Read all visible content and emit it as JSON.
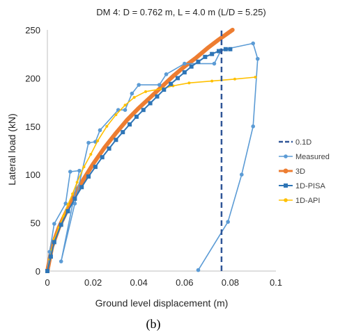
{
  "chart_data": {
    "type": "line",
    "title": "DM 4: D = 0.762 m, L = 4.0 m (L/D = 5.25)",
    "xlabel": "Ground level displacement (m)",
    "ylabel": "Lateral load (kN)",
    "xlim": [
      0,
      0.1
    ],
    "ylim": [
      0,
      250
    ],
    "xticks": [
      "0",
      "0.02",
      "0.04",
      "0.06",
      "0.08",
      "0.1"
    ],
    "yticks": [
      "0",
      "50",
      "100",
      "150",
      "200",
      "250"
    ],
    "grid": false,
    "legend": "right",
    "caption": "(b)",
    "series": [
      {
        "name": "0.1D",
        "style": "dashed",
        "color": "#2f5597",
        "points": [
          [
            0.0762,
            0
          ],
          [
            0.0762,
            250
          ]
        ]
      },
      {
        "name": "Measured",
        "style": "line-dot",
        "color": "#5b9bd5",
        "points": [
          [
            0,
            0
          ],
          [
            0.001,
            20
          ],
          [
            0.003,
            49
          ],
          [
            0.008,
            70
          ],
          [
            0.01,
            103
          ],
          [
            0.014,
            104
          ],
          [
            0.006,
            10
          ],
          [
            0.012,
            70
          ],
          [
            0.018,
            133
          ],
          [
            0.021,
            134
          ],
          [
            0.023,
            146
          ],
          [
            0.031,
            167
          ],
          [
            0.034,
            167
          ],
          [
            0.037,
            184
          ],
          [
            0.04,
            193
          ],
          [
            0.049,
            193
          ],
          [
            0.052,
            204
          ],
          [
            0.06,
            215
          ],
          [
            0.073,
            215
          ],
          [
            0.076,
            229
          ],
          [
            0.09,
            236
          ],
          [
            0.092,
            220
          ],
          [
            0.09,
            150
          ],
          [
            0.085,
            100
          ],
          [
            0.079,
            51
          ],
          [
            0.066,
            1
          ]
        ]
      },
      {
        "name": "3D",
        "style": "thick",
        "color": "#ed7d31",
        "points": [
          [
            0,
            0
          ],
          [
            0.002,
            25
          ],
          [
            0.005,
            45
          ],
          [
            0.01,
            70
          ],
          [
            0.015,
            92
          ],
          [
            0.02,
            111
          ],
          [
            0.025,
            128
          ],
          [
            0.03,
            143
          ],
          [
            0.035,
            157
          ],
          [
            0.04,
            169
          ],
          [
            0.045,
            180
          ],
          [
            0.05,
            191
          ],
          [
            0.055,
            202
          ],
          [
            0.06,
            212
          ],
          [
            0.065,
            221
          ],
          [
            0.07,
            231
          ],
          [
            0.075,
            240
          ],
          [
            0.081,
            250
          ]
        ]
      },
      {
        "name": "1D-PISA",
        "style": "line-square",
        "color": "#2e75b6",
        "points": [
          [
            0,
            0
          ],
          [
            0.0015,
            15
          ],
          [
            0.003,
            30
          ],
          [
            0.006,
            48
          ],
          [
            0.009,
            62
          ],
          [
            0.012,
            75
          ],
          [
            0.015,
            87
          ],
          [
            0.018,
            98
          ],
          [
            0.021,
            108
          ],
          [
            0.024,
            118
          ],
          [
            0.027,
            127
          ],
          [
            0.03,
            136
          ],
          [
            0.033,
            144
          ],
          [
            0.036,
            152
          ],
          [
            0.039,
            160
          ],
          [
            0.042,
            167
          ],
          [
            0.045,
            174
          ],
          [
            0.048,
            181
          ],
          [
            0.051,
            188
          ],
          [
            0.054,
            194
          ],
          [
            0.057,
            200
          ],
          [
            0.06,
            206
          ],
          [
            0.063,
            212
          ],
          [
            0.066,
            217
          ],
          [
            0.069,
            222
          ],
          [
            0.072,
            225
          ],
          [
            0.075,
            228
          ],
          [
            0.078,
            230
          ],
          [
            0.08,
            230
          ]
        ]
      },
      {
        "name": "1D-API",
        "style": "line-dot",
        "color": "#ffc000",
        "points": [
          [
            0,
            0
          ],
          [
            0.001,
            12
          ],
          [
            0.002,
            22
          ],
          [
            0.003,
            33
          ],
          [
            0.005,
            45
          ],
          [
            0.007,
            57
          ],
          [
            0.009,
            69
          ],
          [
            0.011,
            80
          ],
          [
            0.013,
            92
          ],
          [
            0.016,
            108
          ],
          [
            0.019,
            121
          ],
          [
            0.022,
            135
          ],
          [
            0.026,
            150
          ],
          [
            0.03,
            162
          ],
          [
            0.034,
            172
          ],
          [
            0.038,
            180
          ],
          [
            0.043,
            186
          ],
          [
            0.05,
            189
          ],
          [
            0.055,
            192
          ],
          [
            0.062,
            195
          ],
          [
            0.072,
            197
          ],
          [
            0.082,
            199
          ],
          [
            0.091,
            201
          ]
        ]
      }
    ]
  }
}
